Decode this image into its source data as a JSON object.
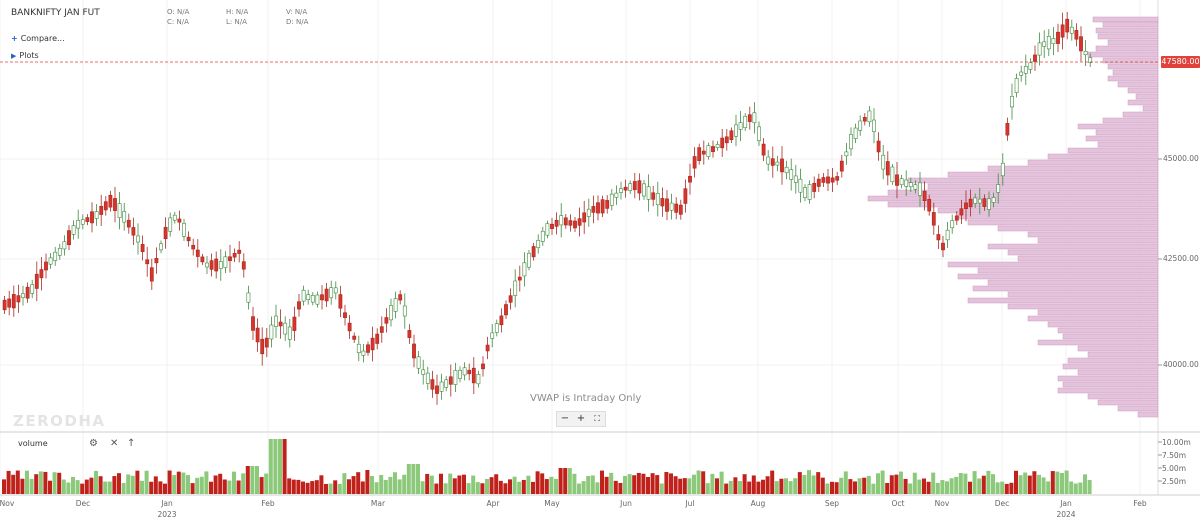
{
  "header": {
    "symbol": "BANKNIFTY JAN FUT",
    "ohlc": {
      "o_label": "O:",
      "o_val": "N/A",
      "h_label": "H:",
      "h_val": "N/A",
      "v_label": "V:",
      "v_val": "N/A",
      "c_label": "C:",
      "c_val": "N/A",
      "l_label": "L:",
      "l_val": "N/A",
      "d_label": "D:",
      "d_val": "N/A"
    }
  },
  "toolbar": {
    "compare_label": "Compare...",
    "plots_label": "Plots",
    "compare_icon": "plus-icon",
    "plots_icon": "triangle-right-icon"
  },
  "price_axis": {
    "last_price": "47580.00",
    "ticks": [
      "45000.00",
      "42500.00",
      "40000.00"
    ]
  },
  "volume_panel": {
    "label": "volume",
    "ticks": [
      "10.00m",
      "7.50m",
      "5.00m",
      "2.50m"
    ],
    "icons": [
      "gear-icon",
      "close-icon",
      "arrow-up-icon"
    ]
  },
  "time_axis": {
    "months": [
      "Nov",
      "Dec",
      "Jan",
      "Feb",
      "Mar",
      "Apr",
      "May",
      "Jun",
      "Jul",
      "Aug",
      "Sep",
      "Oct",
      "Nov",
      "Dec",
      "Jan",
      "Feb"
    ],
    "years": [
      "2023",
      "2024"
    ]
  },
  "watermark": "ZERODHA",
  "vwap_note": "VWAP is Intraday Only",
  "zoom_controls": [
    "−",
    "+",
    "⛶"
  ],
  "colors": {
    "up": "#5cb85c",
    "down": "#d9342b",
    "vol_up": "#8cc97a",
    "vol_down": "#c0221b",
    "profile": "#e4c2dc",
    "profile_border": "#c99ac0",
    "price_line": "#e0413a"
  }
}
